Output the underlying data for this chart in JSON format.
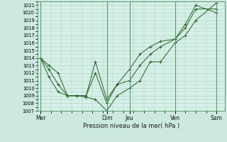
{
  "title": "",
  "xlabel": "Pression niveau de la mer( hPa )",
  "bg_color": "#cce8e0",
  "plot_bg_color": "#d6f0e8",
  "grid_color": "#aaccc0",
  "line_color": "#2d6a2d",
  "marker_color": "#2d6a2d",
  "vline_color": "#5a9a6a",
  "ylim": [
    1007,
    1021.5
  ],
  "yticks": [
    1007,
    1008,
    1009,
    1010,
    1011,
    1012,
    1013,
    1014,
    1015,
    1016,
    1017,
    1018,
    1019,
    1020,
    1021
  ],
  "xtick_labels": [
    "Mer",
    "Dim",
    "Jeu",
    "Ven",
    "Sam"
  ],
  "xtick_positions": [
    0,
    3.2,
    4.3,
    6.5,
    8.5
  ],
  "xlim": [
    -0.15,
    8.9
  ],
  "series": [
    {
      "x": [
        0,
        0.4,
        0.85,
        1.3,
        1.75,
        2.2,
        2.65,
        3.2,
        3.7,
        4.3,
        4.8,
        5.3,
        5.8,
        6.5,
        7.0,
        7.5,
        8.5
      ],
      "y": [
        1014.0,
        1013.0,
        1012.0,
        1009.0,
        1009.0,
        1008.8,
        1008.5,
        1007.0,
        1009.0,
        1010.0,
        1011.0,
        1013.5,
        1013.5,
        1016.0,
        1017.0,
        1019.0,
        1021.3
      ]
    },
    {
      "x": [
        0,
        0.4,
        0.85,
        1.3,
        1.75,
        2.2,
        2.65,
        3.2,
        3.7,
        4.3,
        4.8,
        5.3,
        5.8,
        6.5,
        7.0,
        7.5,
        8.5
      ],
      "y": [
        1014.0,
        1011.5,
        1009.5,
        1009.0,
        1009.0,
        1009.0,
        1012.0,
        1008.0,
        1010.5,
        1011.0,
        1013.0,
        1014.5,
        1015.5,
        1016.5,
        1018.0,
        1020.5,
        1020.5
      ]
    },
    {
      "x": [
        0,
        0.4,
        0.85,
        1.3,
        1.75,
        2.2,
        2.65,
        3.2,
        3.7,
        4.3,
        4.8,
        5.3,
        5.8,
        6.5,
        7.0,
        7.5,
        8.5
      ],
      "y": [
        1014.0,
        1012.5,
        1010.5,
        1009.0,
        1009.0,
        1009.0,
        1013.5,
        1008.5,
        1010.5,
        1012.5,
        1014.5,
        1015.5,
        1016.2,
        1016.5,
        1018.5,
        1021.0,
        1020.0
      ]
    }
  ],
  "vline_positions": [
    0,
    3.2,
    4.3,
    6.5,
    8.5
  ]
}
